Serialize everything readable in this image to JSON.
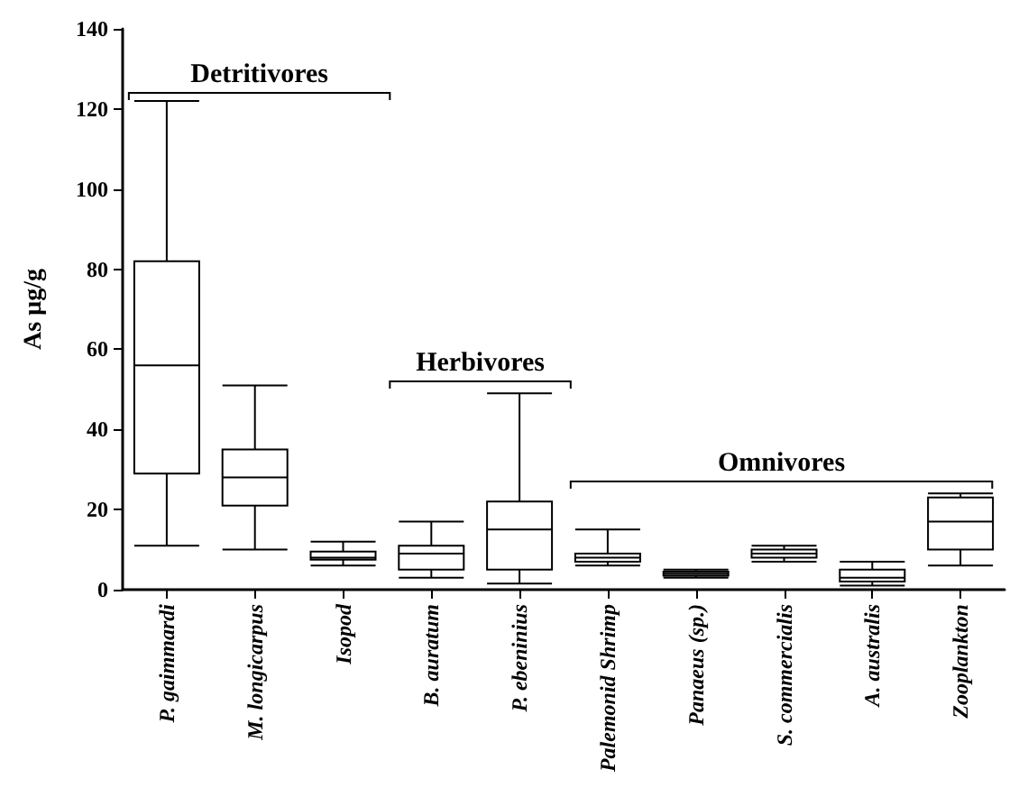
{
  "chart_data": {
    "type": "box",
    "ylabel": "As µg/g",
    "categories": [
      "P. gaimmardi",
      "M. longicarpus",
      "Isopod",
      "B. auratum",
      "P. ebeninius",
      "Palemonid Shrimp",
      "Panaeus (sp.)",
      "S. commercialis",
      "A. australis",
      "Zooplankton"
    ],
    "boxes": [
      {
        "low": 11,
        "q1": 29,
        "median": 56,
        "q3": 82,
        "high": 122
      },
      {
        "low": 10,
        "q1": 21,
        "median": 28,
        "q3": 35,
        "high": 51
      },
      {
        "low": 6,
        "q1": 7.5,
        "median": 8,
        "q3": 9.5,
        "high": 12
      },
      {
        "low": 3,
        "q1": 5,
        "median": 9,
        "q3": 11,
        "high": 17
      },
      {
        "low": 1.5,
        "q1": 5,
        "median": 15,
        "q3": 22,
        "high": 49
      },
      {
        "low": 6,
        "q1": 7,
        "median": 8,
        "q3": 9,
        "high": 15
      },
      {
        "low": 3,
        "q1": 3.5,
        "median": 4,
        "q3": 4.5,
        "high": 5
      },
      {
        "low": 7,
        "q1": 8,
        "median": 9,
        "q3": 10,
        "high": 11
      },
      {
        "low": 1,
        "q1": 2,
        "median": 3,
        "q3": 5,
        "high": 7
      },
      {
        "low": 6,
        "q1": 10,
        "median": 17,
        "q3": 23,
        "high": 24
      }
    ],
    "color": "#000000",
    "ylim": [
      0,
      140
    ],
    "yticks": [
      0,
      20,
      40,
      60,
      80,
      100,
      120,
      140
    ],
    "grid": false,
    "annotations": [
      "Detritivores",
      "Herbivores",
      "Omnivores"
    ]
  }
}
